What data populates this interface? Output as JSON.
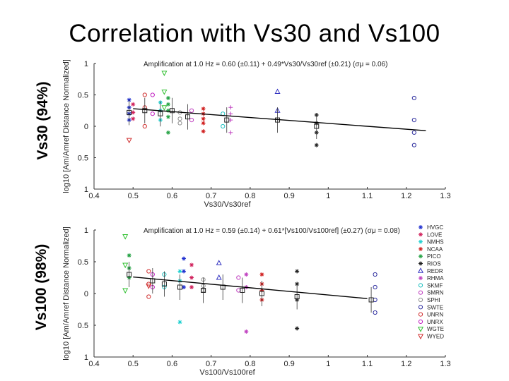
{
  "slide": {
    "title": "Correlation with Vs30 and Vs100",
    "left_label_top": "Vs30 (94%)",
    "left_label_bottom": "Vs100 (98%)"
  },
  "chart_data": [
    {
      "type": "scatter",
      "title": "Amplification at 1.0 Hz = 0.60 (±0.11) + 0.49*Vs30/Vs30ref (±0.21) (σμ = 0.06)",
      "xlabel": "Vs30/Vs30ref",
      "ylabel": "log10 [Am/Amref Distance Normalized]",
      "xlim": [
        0.4,
        1.3
      ],
      "ylim": [
        -1,
        1
      ],
      "x_ticks": [
        "0.4",
        "0.5",
        "0.6",
        "0.7",
        "0.8",
        "0.9",
        "1",
        "1.1",
        "1.2",
        "1.3"
      ],
      "y_ticks": [
        "1",
        "0.5",
        "0",
        "0.5",
        "1"
      ],
      "fit_line": {
        "x": [
          0.5,
          1.25
        ],
        "y": [
          0.28,
          -0.07
        ]
      },
      "series": [
        {
          "name": "HVGC",
          "color": "#1f2fd0",
          "marker": "*",
          "x": [
            0.49,
            0.49,
            0.49,
            0.49
          ],
          "y": [
            0.42,
            0.3,
            0.2,
            0.1
          ]
        },
        {
          "name": "LOVE",
          "color": "#d01f5a",
          "marker": "*",
          "x": [
            0.5,
            0.5,
            0.5
          ],
          "y": [
            0.35,
            0.22,
            0.12
          ]
        },
        {
          "name": "NMHS",
          "color": "#20d0d0",
          "marker": "*",
          "x": [
            0.57,
            0.57,
            0.57
          ],
          "y": [
            0.38,
            0.25,
            0.1
          ]
        },
        {
          "name": "NCAA",
          "color": "#d01f1f",
          "marker": "*",
          "x": [
            0.68,
            0.68,
            0.68,
            0.68,
            0.68
          ],
          "y": [
            0.28,
            0.2,
            0.12,
            0.05,
            -0.08
          ]
        },
        {
          "name": "PICO",
          "color": "#20a040",
          "marker": "*",
          "x": [
            0.59,
            0.59,
            0.59,
            0.59,
            0.59
          ],
          "y": [
            0.45,
            0.35,
            0.25,
            0.15,
            -0.1
          ]
        },
        {
          "name": "RIOS",
          "color": "#202020",
          "marker": "*",
          "x": [
            0.97,
            0.97,
            0.97,
            0.97
          ],
          "y": [
            0.18,
            0.05,
            -0.1,
            -0.3
          ]
        },
        {
          "name": "REDR",
          "color": "#3030c0",
          "marker": "triangle",
          "x": [
            0.87,
            0.87
          ],
          "y": [
            0.55,
            0.25
          ]
        },
        {
          "name": "RHMA",
          "color": "#c040c0",
          "marker": "+",
          "x": [
            0.75,
            0.75,
            0.75,
            0.75
          ],
          "y": [
            0.3,
            0.2,
            0.1,
            -0.1
          ]
        },
        {
          "name": "SKMF",
          "color": "#20c0c0",
          "marker": "circle",
          "x": [
            0.73,
            0.73
          ],
          "y": [
            0.2,
            0.0
          ]
        },
        {
          "name": "SMRN",
          "color": "#c040c0",
          "marker": "circle",
          "x": [
            0.65,
            0.65
          ],
          "y": [
            0.25,
            0.1
          ]
        },
        {
          "name": "SPHI",
          "color": "#909090",
          "marker": "circle",
          "x": [
            0.62,
            0.62,
            0.62
          ],
          "y": [
            0.22,
            0.12,
            0.05
          ]
        },
        {
          "name": "SWTE",
          "color": "#3030a0",
          "marker": "circle",
          "x": [
            1.22,
            1.22,
            1.22,
            1.22
          ],
          "y": [
            0.45,
            0.1,
            -0.1,
            -0.3
          ]
        },
        {
          "name": "UNRN",
          "color": "#d03030",
          "marker": "circle",
          "x": [
            0.53,
            0.53,
            0.53
          ],
          "y": [
            0.5,
            0.3,
            0.0
          ]
        },
        {
          "name": "UNRX",
          "color": "#c020c0",
          "marker": "circle",
          "x": [
            0.55,
            0.55
          ],
          "y": [
            0.5,
            0.2
          ]
        },
        {
          "name": "WGTE",
          "color": "#30c030",
          "marker": "triangle-down",
          "x": [
            0.58,
            0.58,
            0.58
          ],
          "y": [
            0.85,
            0.55,
            0.3
          ]
        },
        {
          "name": "WYED",
          "color": "#d03030",
          "marker": "triangle-down",
          "x": [
            0.49
          ],
          "y": [
            -0.22
          ]
        }
      ],
      "mean_points": {
        "x": [
          0.49,
          0.53,
          0.57,
          0.6,
          0.64,
          0.74,
          0.87,
          0.97
        ],
        "y": [
          0.22,
          0.25,
          0.2,
          0.25,
          0.15,
          0.1,
          0.1,
          0.0
        ]
      }
    },
    {
      "type": "scatter",
      "title": "Amplification at 1.0 Hz = 0.59 (±0.14) + 0.61*[Vs100/Vs100ref] (±0.27) (σμ = 0.08)",
      "xlabel": "Vs100/Vs100ref",
      "ylabel": "log10 [Am/Amref Distance Normalized]",
      "xlim": [
        0.4,
        1.3
      ],
      "ylim": [
        -1,
        1
      ],
      "x_ticks": [
        "0.4",
        "0.5",
        "0.6",
        "0.7",
        "0.8",
        "0.9",
        "1",
        "1.1",
        "1.2",
        "1.3"
      ],
      "y_ticks": [
        "1",
        "0.5",
        "0",
        "0.5",
        "1"
      ],
      "fit_line": {
        "x": [
          0.5,
          1.1
        ],
        "y": [
          0.26,
          -0.08
        ]
      },
      "series": [
        {
          "name": "HVGC",
          "color": "#1f2fd0",
          "marker": "*",
          "x": [
            0.63,
            0.63,
            0.63
          ],
          "y": [
            0.55,
            0.35,
            0.1
          ]
        },
        {
          "name": "LOVE",
          "color": "#d01f5a",
          "marker": "*",
          "x": [
            0.65,
            0.65,
            0.65
          ],
          "y": [
            0.45,
            0.25,
            0.1
          ]
        },
        {
          "name": "NMHS",
          "color": "#20d0d0",
          "marker": "*",
          "x": [
            0.62,
            0.62,
            0.62
          ],
          "y": [
            0.35,
            0.2,
            -0.45
          ]
        },
        {
          "name": "NCAA",
          "color": "#d01f1f",
          "marker": "*",
          "x": [
            0.83,
            0.83,
            0.83,
            0.83
          ],
          "y": [
            0.3,
            0.15,
            0.05,
            -0.1
          ]
        },
        {
          "name": "PICO",
          "color": "#20a040",
          "marker": "*",
          "x": [
            0.49,
            0.49,
            0.49
          ],
          "y": [
            0.6,
            0.4,
            0.25
          ]
        },
        {
          "name": "RIOS",
          "color": "#202020",
          "marker": "*",
          "x": [
            0.92,
            0.92,
            0.92,
            0.92
          ],
          "y": [
            0.35,
            0.15,
            -0.1,
            -0.55
          ]
        },
        {
          "name": "REDR",
          "color": "#3030c0",
          "marker": "triangle",
          "x": [
            0.72,
            0.72
          ],
          "y": [
            0.48,
            0.25
          ]
        },
        {
          "name": "RHMA",
          "color": "#c040c0",
          "marker": "*",
          "x": [
            0.79,
            0.79,
            0.79
          ],
          "y": [
            0.3,
            0.1,
            -0.6
          ]
        },
        {
          "name": "SKMF",
          "color": "#20c0c0",
          "marker": "circle",
          "x": [
            0.58,
            0.58
          ],
          "y": [
            0.3,
            0.1
          ]
        },
        {
          "name": "SMRN",
          "color": "#c040c0",
          "marker": "circle",
          "x": [
            0.77,
            0.77
          ],
          "y": [
            0.25,
            0.05
          ]
        },
        {
          "name": "SPHI",
          "color": "#909090",
          "marker": "circle",
          "x": [
            0.68,
            0.68,
            0.68
          ],
          "y": [
            0.22,
            0.12,
            0.05
          ]
        },
        {
          "name": "SWTE",
          "color": "#3030a0",
          "marker": "circle",
          "x": [
            1.12,
            1.12,
            1.12,
            1.12
          ],
          "y": [
            0.3,
            0.1,
            -0.1,
            -0.3
          ]
        },
        {
          "name": "UNRN",
          "color": "#d03030",
          "marker": "circle",
          "x": [
            0.54,
            0.54,
            0.54
          ],
          "y": [
            0.35,
            0.15,
            -0.05
          ]
        },
        {
          "name": "UNRX",
          "color": "#c020c0",
          "marker": "circle",
          "x": [
            0.55,
            0.55
          ],
          "y": [
            0.3,
            0.1
          ]
        },
        {
          "name": "WGTE",
          "color": "#30c030",
          "marker": "triangle-down",
          "x": [
            0.48,
            0.48,
            0.48
          ],
          "y": [
            0.9,
            0.45,
            0.05
          ]
        },
        {
          "name": "WYED",
          "color": "#d03030",
          "marker": "triangle-down",
          "x": [
            0.54
          ],
          "y": [
            0.12
          ]
        }
      ],
      "mean_points": {
        "x": [
          0.49,
          0.55,
          0.58,
          0.62,
          0.68,
          0.73,
          0.78,
          0.83,
          0.92,
          1.11
        ],
        "y": [
          0.3,
          0.2,
          0.15,
          0.1,
          0.05,
          0.1,
          0.05,
          0.0,
          -0.05,
          -0.1
        ]
      }
    }
  ]
}
